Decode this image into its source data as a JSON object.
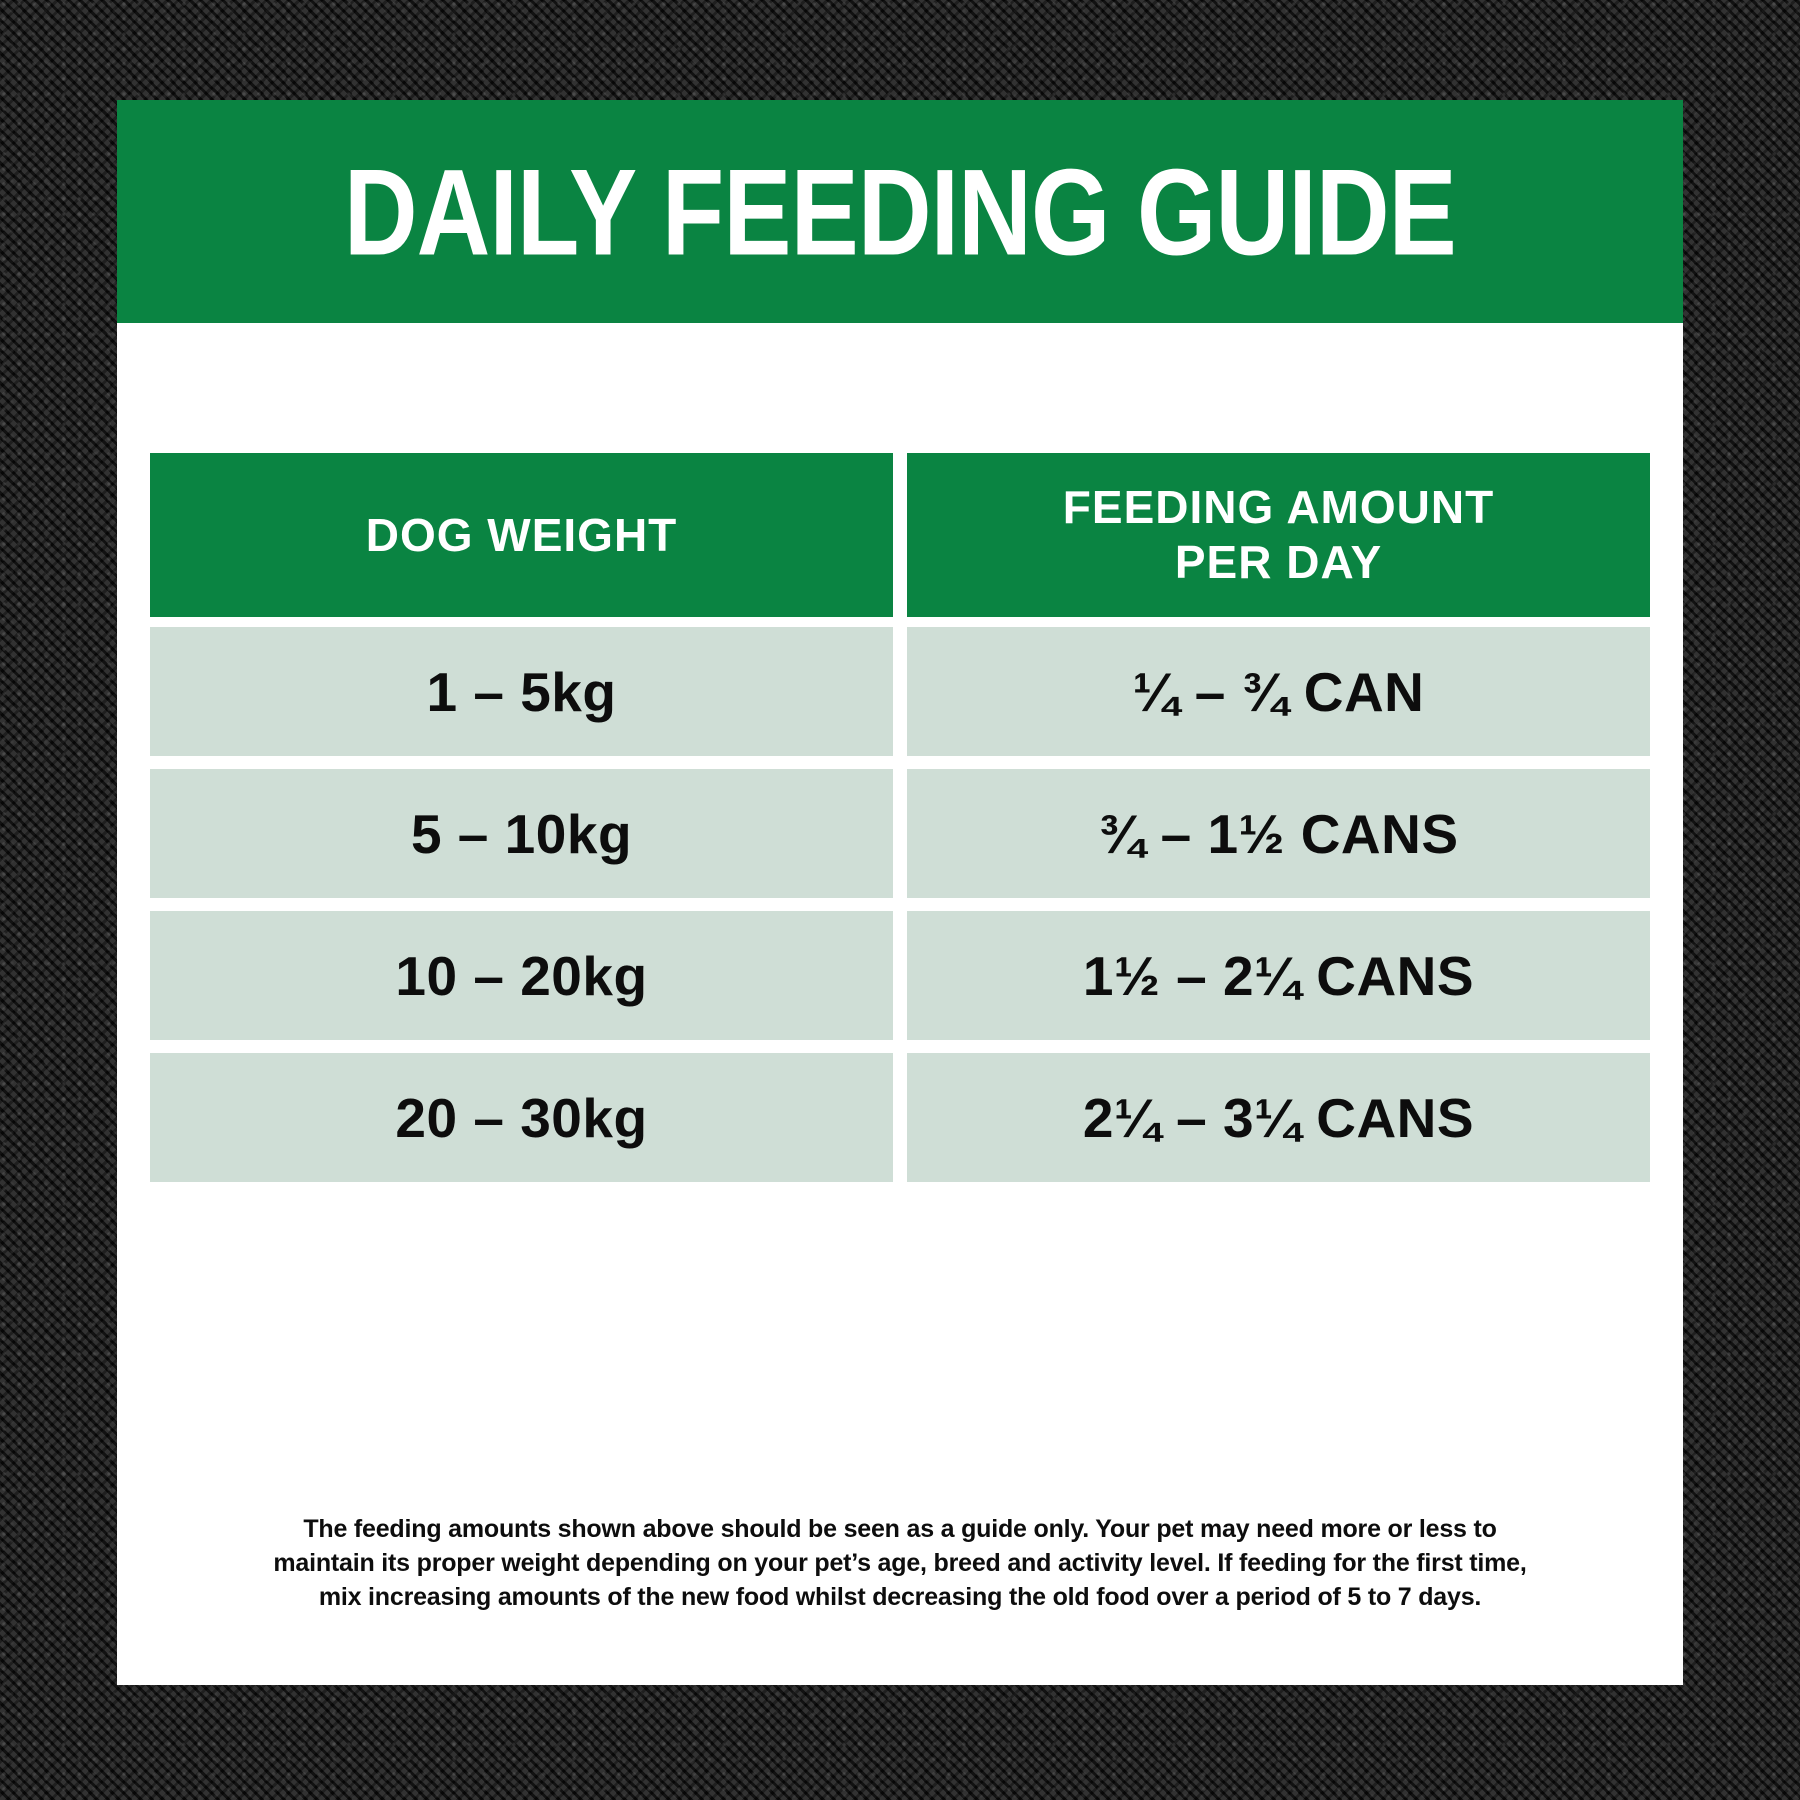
{
  "title": "DAILY FEEDING GUIDE",
  "table": {
    "headers": {
      "dog_weight": "DOG WEIGHT",
      "feeding_amount_line1": "FEEDING AMOUNT",
      "feeding_amount_line2": "PER DAY"
    },
    "rows": [
      {
        "weight": "1 – 5kg",
        "amount": "¼ – ¾ CAN"
      },
      {
        "weight": "5 – 10kg",
        "amount": "¾ – 1½ CANS"
      },
      {
        "weight": "10 – 20kg",
        "amount": "1½ – 2¼ CANS"
      },
      {
        "weight": "20 – 30kg",
        "amount": "2¼ – 3¼ CANS"
      }
    ]
  },
  "footer": {
    "lines": [
      "The feeding amounts shown above should be seen as a guide only. Your pet may need more or less to",
      "maintain its proper weight depending on your pet’s age, breed and activity level. If feeding for the first time,",
      "mix increasing amounts of the new food whilst decreasing the old food over a period of 5 to 7 days."
    ]
  },
  "colors": {
    "brand_green": "#0a8442",
    "row_background": "#cfded6",
    "card_background": "#ffffff",
    "text_dark": "#0d0d0d",
    "fabric_background": "#1e1e1e"
  }
}
